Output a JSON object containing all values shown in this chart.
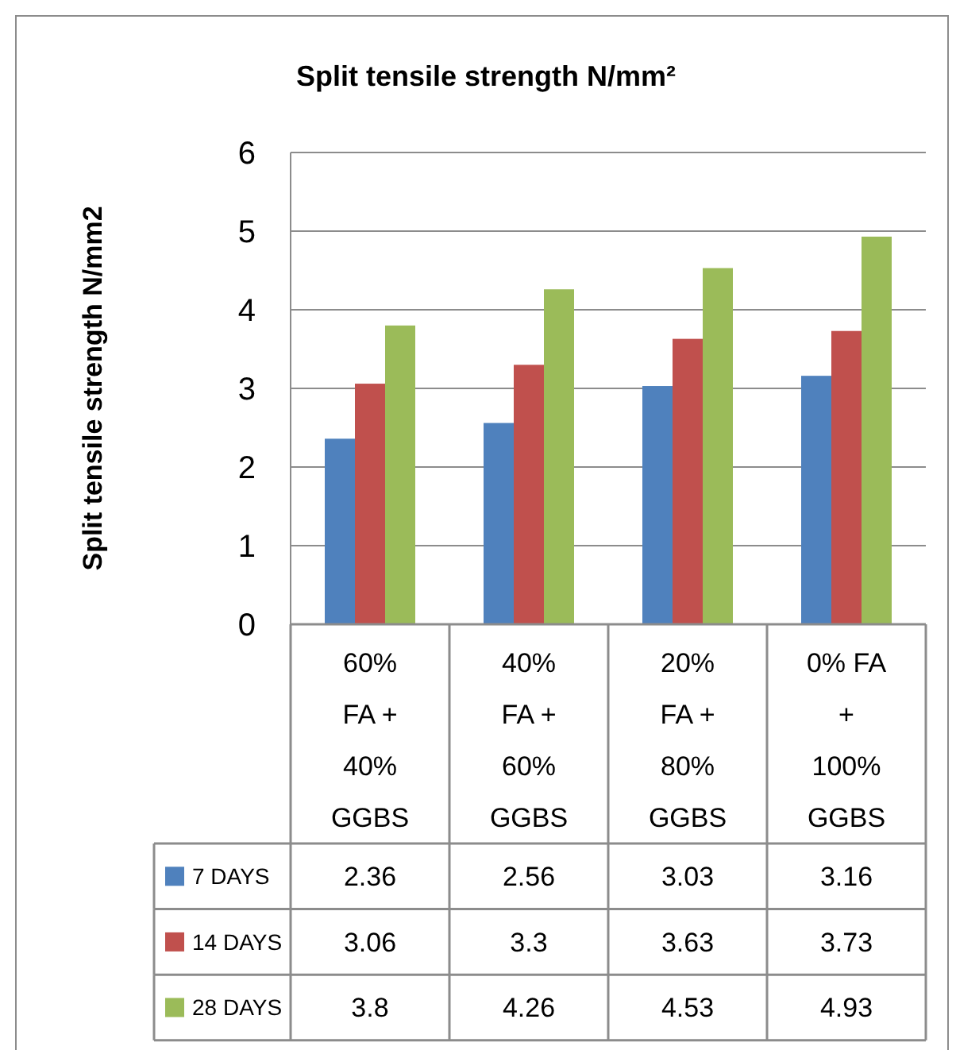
{
  "chart_data": {
    "type": "bar",
    "title": "Split tensile strength N/mm²",
    "ylabel": "Split tensile strength N/mm2",
    "categories": [
      "60% FA + 40% GGBS",
      "40% FA + 60% GGBS",
      "20% FA + 80% GGBS",
      "0%  FA + 100% GGBS"
    ],
    "series": [
      {
        "name": "7 DAYS",
        "color": "#4f81bd",
        "values": [
          2.36,
          2.56,
          3.03,
          3.16
        ]
      },
      {
        "name": "14 DAYS",
        "color": "#c0504d",
        "values": [
          3.06,
          3.3,
          3.63,
          3.73
        ]
      },
      {
        "name": "28 DAYS",
        "color": "#9bbb59",
        "values": [
          3.8,
          4.26,
          4.53,
          4.93
        ]
      }
    ],
    "ylim": [
      0,
      6
    ],
    "yticks": [
      0,
      1,
      2,
      3,
      4,
      5,
      6
    ],
    "grid": "y",
    "legend": "bottom",
    "data_labels": true
  }
}
